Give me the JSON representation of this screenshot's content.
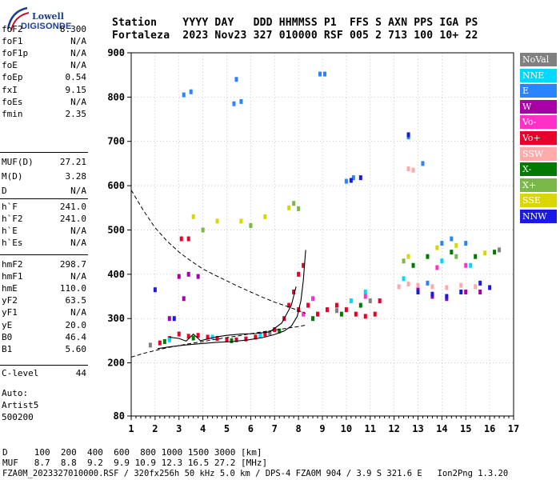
{
  "logo": {
    "line1": "Lowell",
    "line2": "DIGISONDE"
  },
  "header": {
    "row1": "Station    YYYY DAY   DDD HHMMSS P1  FFS S AXN PPS IGA PS",
    "row2": "Fortaleza  2023 Nov23 327 010000 RSF 005 2 713 100 10+ 22"
  },
  "params_group1": [
    {
      "label": "foF2",
      "value": "8.300"
    },
    {
      "label": "foF1",
      "value": "N/A"
    },
    {
      "label": "foF1p",
      "value": "N/A"
    },
    {
      "label": "foE",
      "value": "N/A"
    },
    {
      "label": "foEp",
      "value": "0.54"
    },
    {
      "label": "fxI",
      "value": "9.15"
    },
    {
      "label": "foEs",
      "value": "N/A"
    },
    {
      "label": "fmin",
      "value": "2.35"
    }
  ],
  "params_group2": [
    {
      "label": "MUF(D)",
      "value": "27.21"
    },
    {
      "label": "M(D)",
      "value": "3.28"
    },
    {
      "label": "D",
      "value": "N/A"
    }
  ],
  "params_group3": [
    {
      "label": "h`F",
      "value": "241.0"
    },
    {
      "label": "h`F2",
      "value": "241.0"
    },
    {
      "label": "h`E",
      "value": "N/A"
    },
    {
      "label": "h`Es",
      "value": "N/A"
    }
  ],
  "params_group4": [
    {
      "label": "hmF2",
      "value": "298.7"
    },
    {
      "label": "hmF1",
      "value": "N/A"
    },
    {
      "label": "hmE",
      "value": "110.0"
    },
    {
      "label": "yF2",
      "value": "63.5"
    },
    {
      "label": "yF1",
      "value": "N/A"
    },
    {
      "label": "yE",
      "value": "20.0"
    },
    {
      "label": "B0",
      "value": "46.4"
    },
    {
      "label": "B1",
      "value": "5.60"
    }
  ],
  "clevel": {
    "label": "C-level",
    "value": "44"
  },
  "auto": {
    "line1": "Auto:",
    "line2": "Artist5",
    "line3": "500200"
  },
  "legend": [
    {
      "label": "NoVal",
      "color": "#808080"
    },
    {
      "label": "NNE",
      "color": "#00d8ff"
    },
    {
      "label": "E",
      "color": "#2a84ff"
    },
    {
      "label": "W",
      "color": "#a600a6"
    },
    {
      "label": "Vo-",
      "color": "#ff30c8"
    },
    {
      "label": "Vo+",
      "color": "#e8002a"
    },
    {
      "label": "SSW",
      "color": "#ffaaaa"
    },
    {
      "label": "X-",
      "color": "#007a00"
    },
    {
      "label": "X+",
      "color": "#7ab84a"
    },
    {
      "label": "SSE",
      "color": "#d8d800"
    },
    {
      "label": "NNW",
      "color": "#1a1ae0"
    }
  ],
  "footer": {
    "line1": "D     100  200  400  600  800 1000 1500 3000 [km]",
    "line2": "MUF   8.7  8.8  9.2  9.9 10.9 12.3 16.5 27.2 [MHz]",
    "line3": "FZA0M_2023327010000.RSF / 320fx256h 50 kHz 5.0 km / DPS-4 FZA0M 904 / 3.9 S 321.6 E   Ion2Png 1.3.20"
  },
  "chart_data": {
    "type": "scatter",
    "title": "",
    "xlabel": "",
    "ylabel": "",
    "xlim": [
      1,
      17
    ],
    "ylim": [
      80,
      900
    ],
    "x_ticks": [
      1,
      2,
      3,
      4,
      5,
      6,
      7,
      8,
      9,
      10,
      11,
      12,
      13,
      14,
      15,
      16,
      17
    ],
    "y_ticks": [
      80,
      200,
      300,
      400,
      500,
      600,
      700,
      800,
      900
    ],
    "grid": true,
    "legend_placement": "right",
    "series": [
      {
        "name": "Vo+",
        "color": "#e8002a",
        "points": [
          [
            2.2,
            245
          ],
          [
            2.6,
            255
          ],
          [
            3.0,
            265
          ],
          [
            3.4,
            260
          ],
          [
            3.8,
            262
          ],
          [
            4.2,
            258
          ],
          [
            4.6,
            255
          ],
          [
            5.0,
            252
          ],
          [
            5.4,
            252
          ],
          [
            5.8,
            254
          ],
          [
            6.2,
            258
          ],
          [
            6.6,
            265
          ],
          [
            7.0,
            275
          ],
          [
            7.4,
            300
          ],
          [
            7.6,
            330
          ],
          [
            7.8,
            360
          ],
          [
            8.0,
            400
          ],
          [
            8.2,
            420
          ],
          [
            8.0,
            320
          ],
          [
            8.4,
            330
          ],
          [
            8.8,
            310
          ],
          [
            9.2,
            320
          ],
          [
            9.6,
            330
          ],
          [
            10.0,
            320
          ],
          [
            10.4,
            310
          ],
          [
            10.8,
            305
          ],
          [
            11.2,
            310
          ],
          [
            11.4,
            340
          ],
          [
            3.1,
            480
          ],
          [
            3.4,
            480
          ]
        ]
      },
      {
        "name": "W",
        "color": "#a600a6",
        "points": [
          [
            3.0,
            395
          ],
          [
            3.4,
            400
          ],
          [
            3.8,
            395
          ],
          [
            3.2,
            345
          ],
          [
            2.6,
            300
          ],
          [
            13.0,
            370
          ],
          [
            13.6,
            350
          ],
          [
            14.2,
            345
          ],
          [
            15.0,
            360
          ],
          [
            15.6,
            360
          ]
        ]
      },
      {
        "name": "X-",
        "color": "#007a00",
        "points": [
          [
            2.4,
            248
          ],
          [
            3.6,
            256
          ],
          [
            5.2,
            250
          ],
          [
            7.2,
            272
          ],
          [
            8.6,
            300
          ],
          [
            9.8,
            310
          ],
          [
            10.6,
            330
          ],
          [
            12.8,
            420
          ],
          [
            13.4,
            440
          ],
          [
            14.4,
            450
          ],
          [
            15.4,
            440
          ],
          [
            16.2,
            450
          ]
        ]
      },
      {
        "name": "E",
        "color": "#2a84ff",
        "points": [
          [
            3.2,
            805
          ],
          [
            3.5,
            812
          ],
          [
            5.3,
            785
          ],
          [
            5.6,
            790
          ],
          [
            5.4,
            840
          ],
          [
            8.9,
            852
          ],
          [
            9.1,
            852
          ],
          [
            10.0,
            610
          ],
          [
            10.3,
            618
          ],
          [
            12.6,
            710
          ],
          [
            13.2,
            650
          ],
          [
            14.0,
            470
          ],
          [
            14.4,
            480
          ],
          [
            15.0,
            470
          ],
          [
            13.4,
            380
          ]
        ]
      },
      {
        "name": "NNW",
        "color": "#1a1ae0",
        "points": [
          [
            2.0,
            365
          ],
          [
            10.2,
            612
          ],
          [
            10.6,
            618
          ],
          [
            13.0,
            360
          ],
          [
            13.6,
            355
          ],
          [
            14.2,
            350
          ],
          [
            14.8,
            360
          ],
          [
            15.6,
            380
          ],
          [
            16.0,
            370
          ],
          [
            12.6,
            715
          ],
          [
            2.8,
            300
          ]
        ]
      },
      {
        "name": "SSW",
        "color": "#ffaaaa",
        "points": [
          [
            12.2,
            372
          ],
          [
            12.6,
            378
          ],
          [
            13.0,
            375
          ],
          [
            13.6,
            372
          ],
          [
            14.2,
            370
          ],
          [
            14.8,
            375
          ],
          [
            15.4,
            372
          ],
          [
            12.6,
            638
          ],
          [
            12.8,
            635
          ]
        ]
      },
      {
        "name": "NNE",
        "color": "#00d8ff",
        "points": [
          [
            2.6,
            252
          ],
          [
            4.4,
            258
          ],
          [
            6.4,
            262
          ],
          [
            10.2,
            340
          ],
          [
            10.8,
            360
          ],
          [
            12.4,
            390
          ],
          [
            14.0,
            430
          ],
          [
            15.2,
            420
          ]
        ]
      },
      {
        "name": "SSE",
        "color": "#d8d800",
        "points": [
          [
            3.6,
            530
          ],
          [
            4.6,
            520
          ],
          [
            5.6,
            520
          ],
          [
            6.6,
            530
          ],
          [
            7.6,
            550
          ],
          [
            12.6,
            440
          ],
          [
            13.8,
            460
          ],
          [
            14.6,
            465
          ],
          [
            15.8,
            448
          ]
        ]
      },
      {
        "name": "X+",
        "color": "#7ab84a",
        "points": [
          [
            7.8,
            560
          ],
          [
            8.0,
            548
          ],
          [
            4.0,
            500
          ],
          [
            6.0,
            510
          ],
          [
            12.4,
            430
          ],
          [
            14.6,
            440
          ]
        ]
      },
      {
        "name": "Vo-",
        "color": "#ff30c8",
        "points": [
          [
            8.6,
            345
          ],
          [
            8.2,
            310
          ],
          [
            10.8,
            350
          ],
          [
            13.8,
            415
          ],
          [
            15.0,
            420
          ]
        ]
      },
      {
        "name": "NoVal",
        "color": "#808080",
        "points": [
          [
            1.8,
            240
          ],
          [
            6.8,
            268
          ],
          [
            9.6,
            318
          ],
          [
            11.0,
            340
          ],
          [
            16.4,
            455
          ]
        ]
      }
    ],
    "curves": [
      {
        "kind": "dashed",
        "points": [
          [
            1,
            590
          ],
          [
            1.5,
            545
          ],
          [
            2,
            505
          ],
          [
            2.5,
            475
          ],
          [
            3,
            450
          ],
          [
            3.5,
            430
          ],
          [
            4,
            412
          ],
          [
            4.5,
            398
          ],
          [
            5,
            385
          ],
          [
            5.5,
            372
          ],
          [
            6,
            360
          ],
          [
            6.5,
            348
          ],
          [
            7,
            337
          ],
          [
            7.5,
            328
          ],
          [
            8,
            318
          ],
          [
            8.3,
            312
          ]
        ]
      },
      {
        "kind": "dashed",
        "points": [
          [
            1,
            213
          ],
          [
            1.5,
            221
          ],
          [
            2,
            228
          ],
          [
            2.5,
            234
          ],
          [
            3,
            239
          ],
          [
            3.5,
            244
          ],
          [
            4,
            248
          ],
          [
            4.5,
            253
          ],
          [
            5,
            257
          ],
          [
            5.5,
            261
          ],
          [
            6,
            266
          ],
          [
            6.5,
            270
          ],
          [
            7,
            274
          ],
          [
            7.5,
            278
          ],
          [
            8,
            282
          ],
          [
            8.3,
            285
          ]
        ]
      },
      {
        "kind": "solid",
        "points": [
          [
            2.1,
            232
          ],
          [
            2.6,
            236
          ],
          [
            3.2,
            240
          ],
          [
            3.8,
            243
          ],
          [
            4.5,
            246
          ],
          [
            5.2,
            248
          ],
          [
            5.9,
            252
          ],
          [
            6.5,
            257
          ],
          [
            7.0,
            264
          ],
          [
            7.4,
            272
          ],
          [
            7.7,
            283
          ],
          [
            7.95,
            305
          ],
          [
            8.1,
            340
          ],
          [
            8.2,
            385
          ],
          [
            8.3,
            455
          ]
        ]
      },
      {
        "kind": "solid",
        "points": [
          [
            2.6,
            258
          ],
          [
            3.0,
            255
          ],
          [
            3.3,
            249
          ],
          [
            3.6,
            265
          ],
          [
            3.9,
            250
          ],
          [
            4.2,
            254
          ],
          [
            4.6,
            259
          ],
          [
            5.0,
            262
          ],
          [
            5.6,
            265
          ],
          [
            6.2,
            266
          ],
          [
            6.8,
            270
          ],
          [
            7.3,
            290
          ],
          [
            7.7,
            330
          ],
          [
            7.9,
            372
          ]
        ]
      }
    ]
  }
}
